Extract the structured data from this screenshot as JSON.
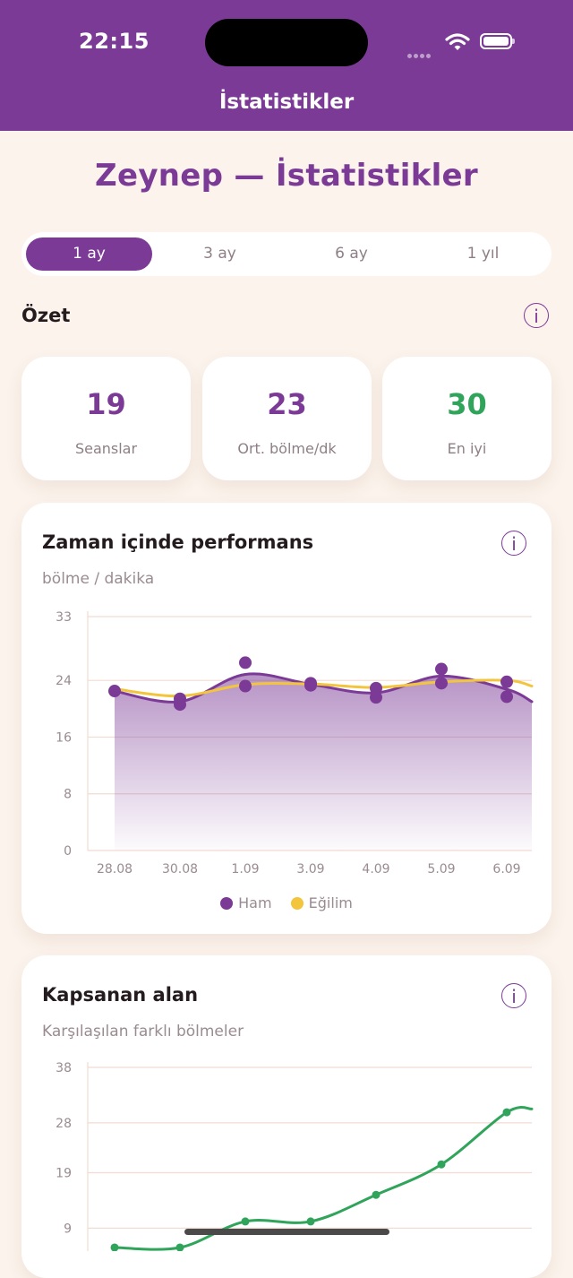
{
  "status_bar": {
    "time": "22:15"
  },
  "nav": {
    "title": "İstatistikler"
  },
  "heading": "Zeynep — İstatistikler",
  "range_tabs": [
    {
      "label": "1 ay",
      "active": true
    },
    {
      "label": "3 ay",
      "active": false
    },
    {
      "label": "6 ay",
      "active": false
    },
    {
      "label": "1 yıl",
      "active": false
    }
  ],
  "summary": {
    "title": "Özet",
    "info": "i",
    "stats": [
      {
        "value": "19",
        "label": "Seanslar",
        "color": "#7b3a96"
      },
      {
        "value": "23",
        "label": "Ort. bölme/dk",
        "color": "#7b3a96"
      },
      {
        "value": "30",
        "label": "En iyi",
        "color": "#2fa45a"
      }
    ]
  },
  "performance": {
    "title": "Zaman içinde performans",
    "subtitle": "bölme / dakika",
    "info": "i",
    "legend": [
      {
        "label": "Ham",
        "color": "#7b3a96"
      },
      {
        "label": "Eğilim",
        "color": "#f2c53d"
      }
    ]
  },
  "coverage": {
    "title": "Kapsanan alan",
    "subtitle": "Karşılaşılan farklı bölmeler",
    "info": "i"
  },
  "chart_data": [
    {
      "type": "line",
      "title": "Zaman içinde performans",
      "ylabel": "bölme / dakika",
      "x": [
        "28.08",
        "30.08",
        "1.09",
        "3.09",
        "4.09",
        "5.09",
        "6.09"
      ],
      "yticks": [
        0,
        8,
        16,
        24,
        33
      ],
      "ylim": [
        0,
        33
      ],
      "grid": true,
      "legend": "bottom",
      "series": [
        {
          "name": "Ham",
          "color": "#7b3a96",
          "points": [
            [
              0,
              22.5
            ],
            [
              1,
              21.4
            ],
            [
              1,
              20.6
            ],
            [
              2,
              26.5
            ],
            [
              2,
              23.2
            ],
            [
              3,
              23.6
            ],
            [
              3,
              23.3
            ],
            [
              4,
              22.9
            ],
            [
              4,
              21.6
            ],
            [
              5,
              25.6
            ],
            [
              5,
              23.6
            ],
            [
              6,
              23.8
            ],
            [
              6,
              21.7
            ]
          ],
          "end_value": 21.0
        },
        {
          "name": "Eğilim",
          "color": "#f2c53d",
          "points": [
            [
              0,
              22.8
            ],
            [
              1,
              21.8
            ],
            [
              2,
              23.4
            ],
            [
              3,
              23.5
            ],
            [
              4,
              23.0
            ],
            [
              5,
              23.8
            ],
            [
              6,
              24.0
            ]
          ],
          "end_value": 23.2
        }
      ]
    },
    {
      "type": "line",
      "title": "Kapsanan alan",
      "ylabel": "Karşılaşılan farklı bölmeler",
      "yticks": [
        9,
        19,
        28,
        38
      ],
      "ylim": [
        0,
        38
      ],
      "grid": true,
      "series": [
        {
          "name": "",
          "color": "#2fa45a",
          "points": [
            [
              0,
              5.5
            ],
            [
              1,
              5.5
            ],
            [
              2,
              10.2
            ],
            [
              3,
              10.2
            ],
            [
              4,
              15.0
            ],
            [
              5,
              20.5
            ],
            [
              6,
              29.9
            ]
          ],
          "end_value": 30.5
        }
      ]
    }
  ]
}
